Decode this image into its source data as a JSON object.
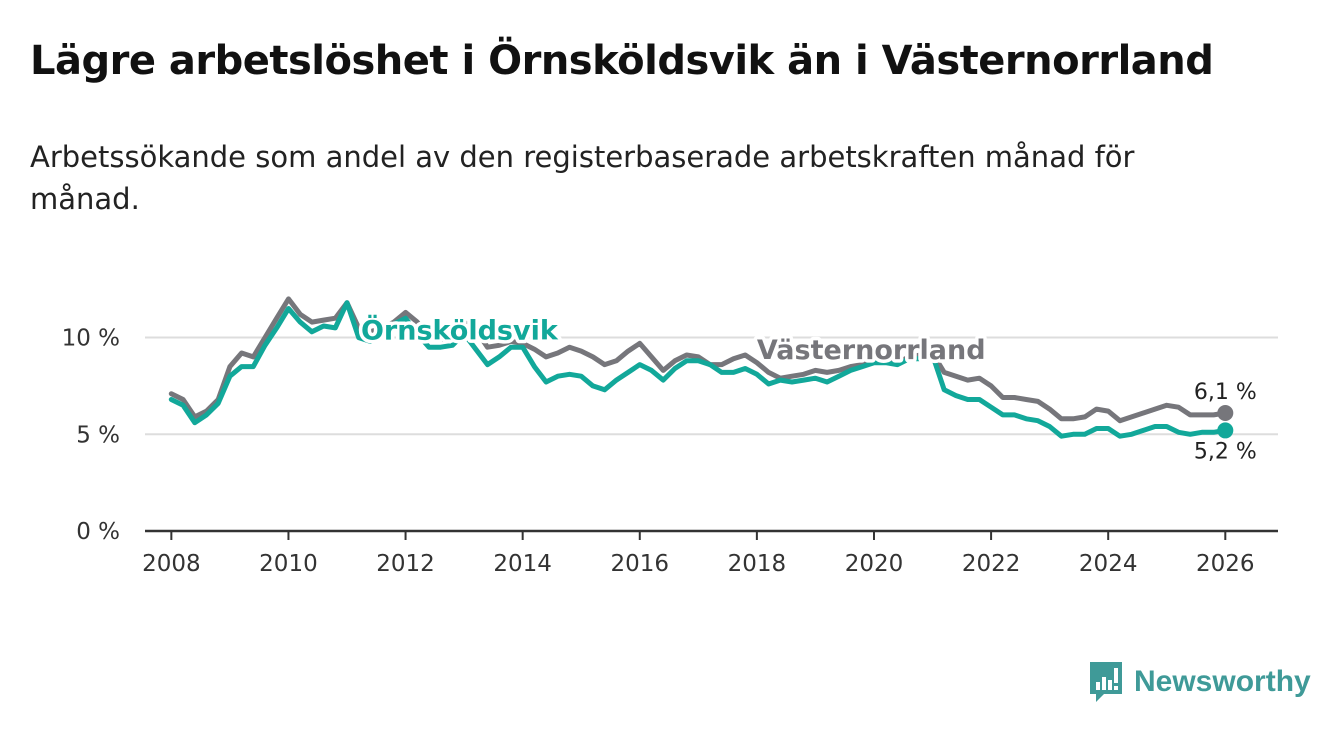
{
  "title": "Lägre arbetslöshet i Örnsköldsvik än i Västernorrland",
  "subtitle": "Arbetssökande som andel av den registerbaserade arbetskraften månad för månad.",
  "brand": {
    "name": "Newsworthy",
    "color": "#3f9a98"
  },
  "colors": {
    "ornskoldsvik": "#12a89a",
    "vasternorrland": "#76767b",
    "grid": "#dddddd",
    "axis": "#333333"
  },
  "chart_data": {
    "type": "line",
    "title": "Lägre arbetslöshet i Örnsköldsvik än i Västernorrland",
    "xlabel": "",
    "ylabel": "",
    "xlim": [
      2007.55,
      2026.9
    ],
    "ylim": [
      0,
      12.2
    ],
    "x_ticks": [
      "2008",
      "2010",
      "2012",
      "2014",
      "2016",
      "2018",
      "2020",
      "2022",
      "2024",
      "2026"
    ],
    "y_ticks": [
      "0 %",
      "5 %",
      "10 %"
    ],
    "y_tick_values": [
      0,
      5,
      10
    ],
    "grid": true,
    "series": [
      {
        "name": "Västernorrland",
        "color_key": "vasternorrland",
        "end_label": "6,1 %",
        "x": [
          2008.0,
          2008.2,
          2008.4,
          2008.6,
          2008.8,
          2009.0,
          2009.2,
          2009.4,
          2009.6,
          2009.8,
          2010.0,
          2010.2,
          2010.4,
          2010.6,
          2010.8,
          2011.0,
          2011.2,
          2011.4,
          2011.6,
          2011.8,
          2012.0,
          2012.2,
          2012.4,
          2012.6,
          2012.8,
          2013.0,
          2013.2,
          2013.4,
          2013.6,
          2013.8,
          2014.0,
          2014.2,
          2014.4,
          2014.6,
          2014.8,
          2015.0,
          2015.2,
          2015.4,
          2015.6,
          2015.8,
          2016.0,
          2016.2,
          2016.4,
          2016.6,
          2016.8,
          2017.0,
          2017.2,
          2017.4,
          2017.6,
          2017.8,
          2018.0,
          2018.2,
          2018.4,
          2018.6,
          2018.8,
          2019.0,
          2019.2,
          2019.4,
          2019.6,
          2019.8,
          2020.0,
          2020.2,
          2020.4,
          2020.6,
          2020.8,
          2021.0,
          2021.2,
          2021.4,
          2021.6,
          2021.8,
          2022.0,
          2022.2,
          2022.4,
          2022.6,
          2022.8,
          2023.0,
          2023.2,
          2023.4,
          2023.6,
          2023.8,
          2024.0,
          2024.2,
          2024.4,
          2024.6,
          2024.8,
          2025.0,
          2025.2,
          2025.4,
          2025.6,
          2025.8,
          2026.0
        ],
        "values": [
          7.1,
          6.8,
          5.9,
          6.2,
          6.8,
          8.5,
          9.2,
          9.0,
          10.0,
          11.0,
          12.0,
          11.2,
          10.8,
          10.9,
          11.0,
          11.8,
          10.5,
          10.3,
          10.5,
          10.8,
          11.3,
          10.8,
          10.0,
          9.9,
          10.0,
          10.8,
          10.4,
          9.5,
          9.6,
          9.8,
          9.7,
          9.4,
          9.0,
          9.2,
          9.5,
          9.3,
          9.0,
          8.6,
          8.8,
          9.3,
          9.7,
          9.0,
          8.3,
          8.8,
          9.1,
          9.0,
          8.6,
          8.6,
          8.9,
          9.1,
          8.7,
          8.2,
          7.9,
          8.0,
          8.1,
          8.3,
          8.2,
          8.3,
          8.5,
          8.6,
          8.8,
          8.8,
          8.7,
          9.0,
          9.1,
          9.2,
          8.2,
          8.0,
          7.8,
          7.9,
          7.5,
          6.9,
          6.9,
          6.8,
          6.7,
          6.3,
          5.8,
          5.8,
          5.9,
          6.3,
          6.2,
          5.7,
          5.9,
          6.1,
          6.3,
          6.5,
          6.4,
          6.0,
          6.0,
          6.0,
          6.1
        ]
      },
      {
        "name": "Örnsköldsvik",
        "color_key": "ornskoldsvik",
        "end_label": "5,2 %",
        "x": [
          2008.0,
          2008.2,
          2008.4,
          2008.6,
          2008.8,
          2009.0,
          2009.2,
          2009.4,
          2009.6,
          2009.8,
          2010.0,
          2010.2,
          2010.4,
          2010.6,
          2010.8,
          2011.0,
          2011.2,
          2011.4,
          2011.6,
          2011.8,
          2012.0,
          2012.2,
          2012.4,
          2012.6,
          2012.8,
          2013.0,
          2013.2,
          2013.4,
          2013.6,
          2013.8,
          2014.0,
          2014.2,
          2014.4,
          2014.6,
          2014.8,
          2015.0,
          2015.2,
          2015.4,
          2015.6,
          2015.8,
          2016.0,
          2016.2,
          2016.4,
          2016.6,
          2016.8,
          2017.0,
          2017.2,
          2017.4,
          2017.6,
          2017.8,
          2018.0,
          2018.2,
          2018.4,
          2018.6,
          2018.8,
          2019.0,
          2019.2,
          2019.4,
          2019.6,
          2019.8,
          2020.0,
          2020.2,
          2020.4,
          2020.6,
          2020.8,
          2021.0,
          2021.2,
          2021.4,
          2021.6,
          2021.8,
          2022.0,
          2022.2,
          2022.4,
          2022.6,
          2022.8,
          2023.0,
          2023.2,
          2023.4,
          2023.6,
          2023.8,
          2024.0,
          2024.2,
          2024.4,
          2024.6,
          2024.8,
          2025.0,
          2025.2,
          2025.4,
          2025.6,
          2025.8,
          2026.0
        ],
        "values": [
          6.8,
          6.5,
          5.6,
          6.0,
          6.6,
          8.0,
          8.5,
          8.5,
          9.6,
          10.5,
          11.5,
          10.8,
          10.3,
          10.6,
          10.5,
          11.8,
          10.0,
          9.8,
          10.2,
          10.7,
          11.0,
          10.2,
          9.5,
          9.5,
          9.6,
          10.2,
          9.4,
          8.6,
          9.0,
          9.5,
          9.5,
          8.5,
          7.7,
          8.0,
          8.1,
          8.0,
          7.5,
          7.3,
          7.8,
          8.2,
          8.6,
          8.3,
          7.8,
          8.4,
          8.8,
          8.8,
          8.6,
          8.2,
          8.2,
          8.4,
          8.1,
          7.6,
          7.8,
          7.7,
          7.8,
          7.9,
          7.7,
          8.0,
          8.3,
          8.5,
          8.7,
          8.7,
          8.6,
          8.9,
          8.9,
          9.1,
          7.3,
          7.0,
          6.8,
          6.8,
          6.4,
          6.0,
          6.0,
          5.8,
          5.7,
          5.4,
          4.9,
          5.0,
          5.0,
          5.3,
          5.3,
          4.9,
          5.0,
          5.2,
          5.4,
          5.4,
          5.1,
          5.0,
          5.1,
          5.1,
          5.2
        ]
      }
    ]
  }
}
